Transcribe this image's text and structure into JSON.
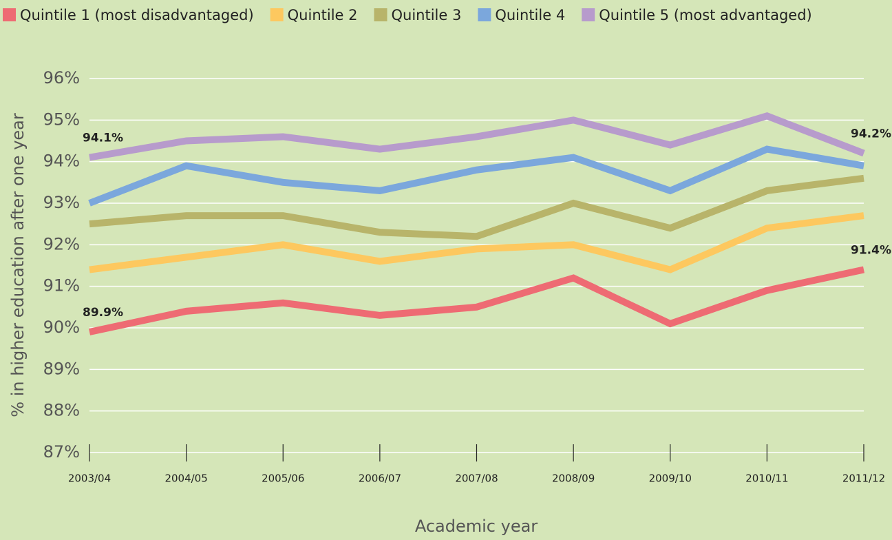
{
  "chart_data": {
    "type": "line",
    "y_label": "% in higher education after one year",
    "x_label": "Academic year",
    "categories": [
      "2003/04",
      "2004/05",
      "2005/06",
      "2006/07",
      "2007/08",
      "2008/09",
      "2009/10",
      "2010/11",
      "2011/12"
    ],
    "series": [
      {
        "name": "Quintile 1 (most disadvantaged)",
        "color": "#ee6b73",
        "values": [
          89.9,
          90.4,
          90.6,
          90.3,
          90.5,
          91.2,
          90.1,
          90.9,
          91.4
        ],
        "value_labels": [
          "89.9%",
          null,
          null,
          null,
          null,
          null,
          null,
          null,
          "91.4%"
        ]
      },
      {
        "name": "Quintile 2",
        "color": "#fdc85f",
        "values": [
          91.4,
          91.7,
          92.0,
          91.6,
          91.9,
          92.0,
          91.4,
          92.4,
          92.7
        ]
      },
      {
        "name": "Quintile 3",
        "color": "#b8b46a",
        "values": [
          92.5,
          92.7,
          92.7,
          92.3,
          92.2,
          93.0,
          92.4,
          93.3,
          93.6
        ]
      },
      {
        "name": "Quintile 4",
        "color": "#7ba7dc",
        "values": [
          93.0,
          93.9,
          93.5,
          93.3,
          93.8,
          94.1,
          93.3,
          94.3,
          93.9
        ]
      },
      {
        "name": "Quintile 5 (most advantaged)",
        "color": "#b79bcc",
        "values": [
          94.1,
          94.5,
          94.6,
          94.3,
          94.6,
          95.0,
          94.4,
          95.1,
          94.2
        ],
        "value_labels": [
          "94.1%",
          null,
          null,
          null,
          null,
          null,
          null,
          null,
          "94.2%"
        ]
      }
    ],
    "ylim": [
      87,
      96
    ],
    "yticks": [
      {
        "value": 87,
        "label": "87%"
      },
      {
        "value": 88,
        "label": "88%"
      },
      {
        "value": 89,
        "label": "89%"
      },
      {
        "value": 90,
        "label": "90%"
      },
      {
        "value": 91,
        "label": "91%"
      },
      {
        "value": 92,
        "label": "92%"
      },
      {
        "value": 93,
        "label": "93%"
      },
      {
        "value": 94,
        "label": "94%"
      },
      {
        "value": 95,
        "label": "95%"
      },
      {
        "value": 96,
        "label": "96%"
      }
    ],
    "grid": true
  }
}
